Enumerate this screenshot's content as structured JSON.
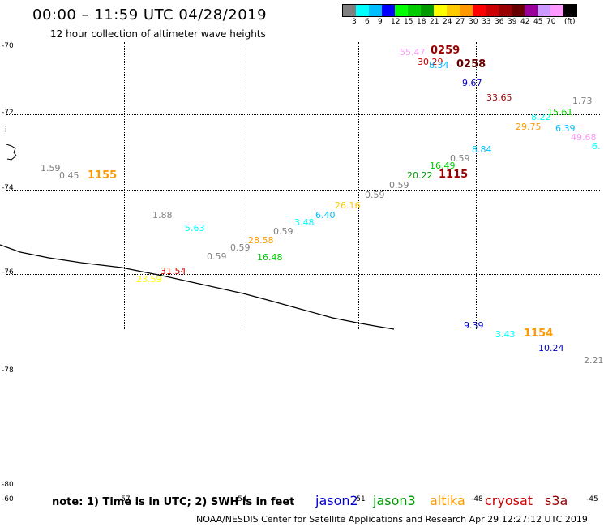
{
  "header": {
    "title": "00:00 – 11:59 UTC 04/28/2019",
    "subtitle": "12 hour collection of altimeter wave heights"
  },
  "legend": {
    "swatches": [
      "#808080",
      "#00ffff",
      "#00bfff",
      "#0000ff",
      "#00ff00",
      "#00cc00",
      "#009900",
      "#ffff00",
      "#ffcc00",
      "#ff9900",
      "#ff0000",
      "#cc0000",
      "#990000",
      "#660000",
      "#990099",
      "#cc99ff",
      "#ff99ff",
      "#000000"
    ],
    "labels": [
      "3",
      "6",
      "9",
      "12",
      "15",
      "18",
      "21",
      "24",
      "27",
      "30",
      "33",
      "36",
      "39",
      "42",
      "45",
      "70",
      "(ft)"
    ]
  },
  "axes": {
    "lat_labels": [
      "-70",
      "-72",
      "-74",
      "-76",
      "-78",
      "-80"
    ],
    "lon_labels": [
      "-60",
      "-57",
      "-54",
      "-51",
      "-48",
      "-45"
    ],
    "edge_mark": "i"
  },
  "observations": [
    {
      "text": "55.47",
      "color": "#ff99ff"
    },
    {
      "text": "30.29",
      "color": "#cc0000"
    },
    {
      "text": "8.34",
      "color": "#00bfff"
    },
    {
      "text": "9.67",
      "color": "#0000cc"
    },
    {
      "text": "33.65",
      "color": "#990000"
    },
    {
      "text": "1.73",
      "color": "#808080"
    },
    {
      "text": "15.61",
      "color": "#00cc00"
    },
    {
      "text": "8.22",
      "color": "#00ffff"
    },
    {
      "text": "29.75",
      "color": "#ff9900"
    },
    {
      "text": "6.39",
      "color": "#00bfff"
    },
    {
      "text": "49.68",
      "color": "#ff99ff"
    },
    {
      "text": "6.",
      "color": "#00ffff"
    },
    {
      "text": "8.84",
      "color": "#00bfff"
    },
    {
      "text": "0.59",
      "color": "#808080"
    },
    {
      "text": "16.49",
      "color": "#00cc00"
    },
    {
      "text": "20.22",
      "color": "#009900"
    },
    {
      "text": "0.59",
      "color": "#808080"
    },
    {
      "text": "0.59",
      "color": "#808080"
    },
    {
      "text": "26.16",
      "color": "#ffcc00"
    },
    {
      "text": "6.40",
      "color": "#00bfff"
    },
    {
      "text": "3.48",
      "color": "#00ffff"
    },
    {
      "text": "0.59",
      "color": "#808080"
    },
    {
      "text": "28.58",
      "color": "#ff9900"
    },
    {
      "text": "0.59",
      "color": "#808080"
    },
    {
      "text": "16.48",
      "color": "#00cc00"
    },
    {
      "text": "0.59",
      "color": "#808080"
    },
    {
      "text": "1.88",
      "color": "#808080"
    },
    {
      "text": "5.63",
      "color": "#00ffff"
    },
    {
      "text": "31.54",
      "color": "#cc0000"
    },
    {
      "text": "23.59",
      "color": "#ffff00"
    },
    {
      "text": "1.59",
      "color": "#808080"
    },
    {
      "text": "0.45",
      "color": "#808080"
    },
    {
      "text": "9.39",
      "color": "#0000cc"
    },
    {
      "text": "3.43",
      "color": "#00ffff"
    },
    {
      "text": "10.24",
      "color": "#0000cc"
    },
    {
      "text": "2.21",
      "color": "#808080"
    }
  ],
  "times": [
    {
      "text": "0259",
      "color": "#990000"
    },
    {
      "text": "0258",
      "color": "#660000"
    },
    {
      "text": "1115",
      "color": "#990000"
    },
    {
      "text": "1155",
      "color": "#ff9900"
    },
    {
      "text": "1154",
      "color": "#ff9900"
    }
  ],
  "note": "note: 1) Time is in UTC; 2) SWH is in feet",
  "satellites": [
    {
      "name": "jason2",
      "color": "#0000cc"
    },
    {
      "name": "jason3",
      "color": "#009900"
    },
    {
      "name": "altika",
      "color": "#ff9900"
    },
    {
      "name": "cryosat",
      "color": "#cc0000"
    },
    {
      "name": "s3a",
      "color": "#990000"
    }
  ],
  "footer": "NOAA/NESDIS Center for Satellite Applications and Research    Apr 29 12:27:12 UTC 2019"
}
